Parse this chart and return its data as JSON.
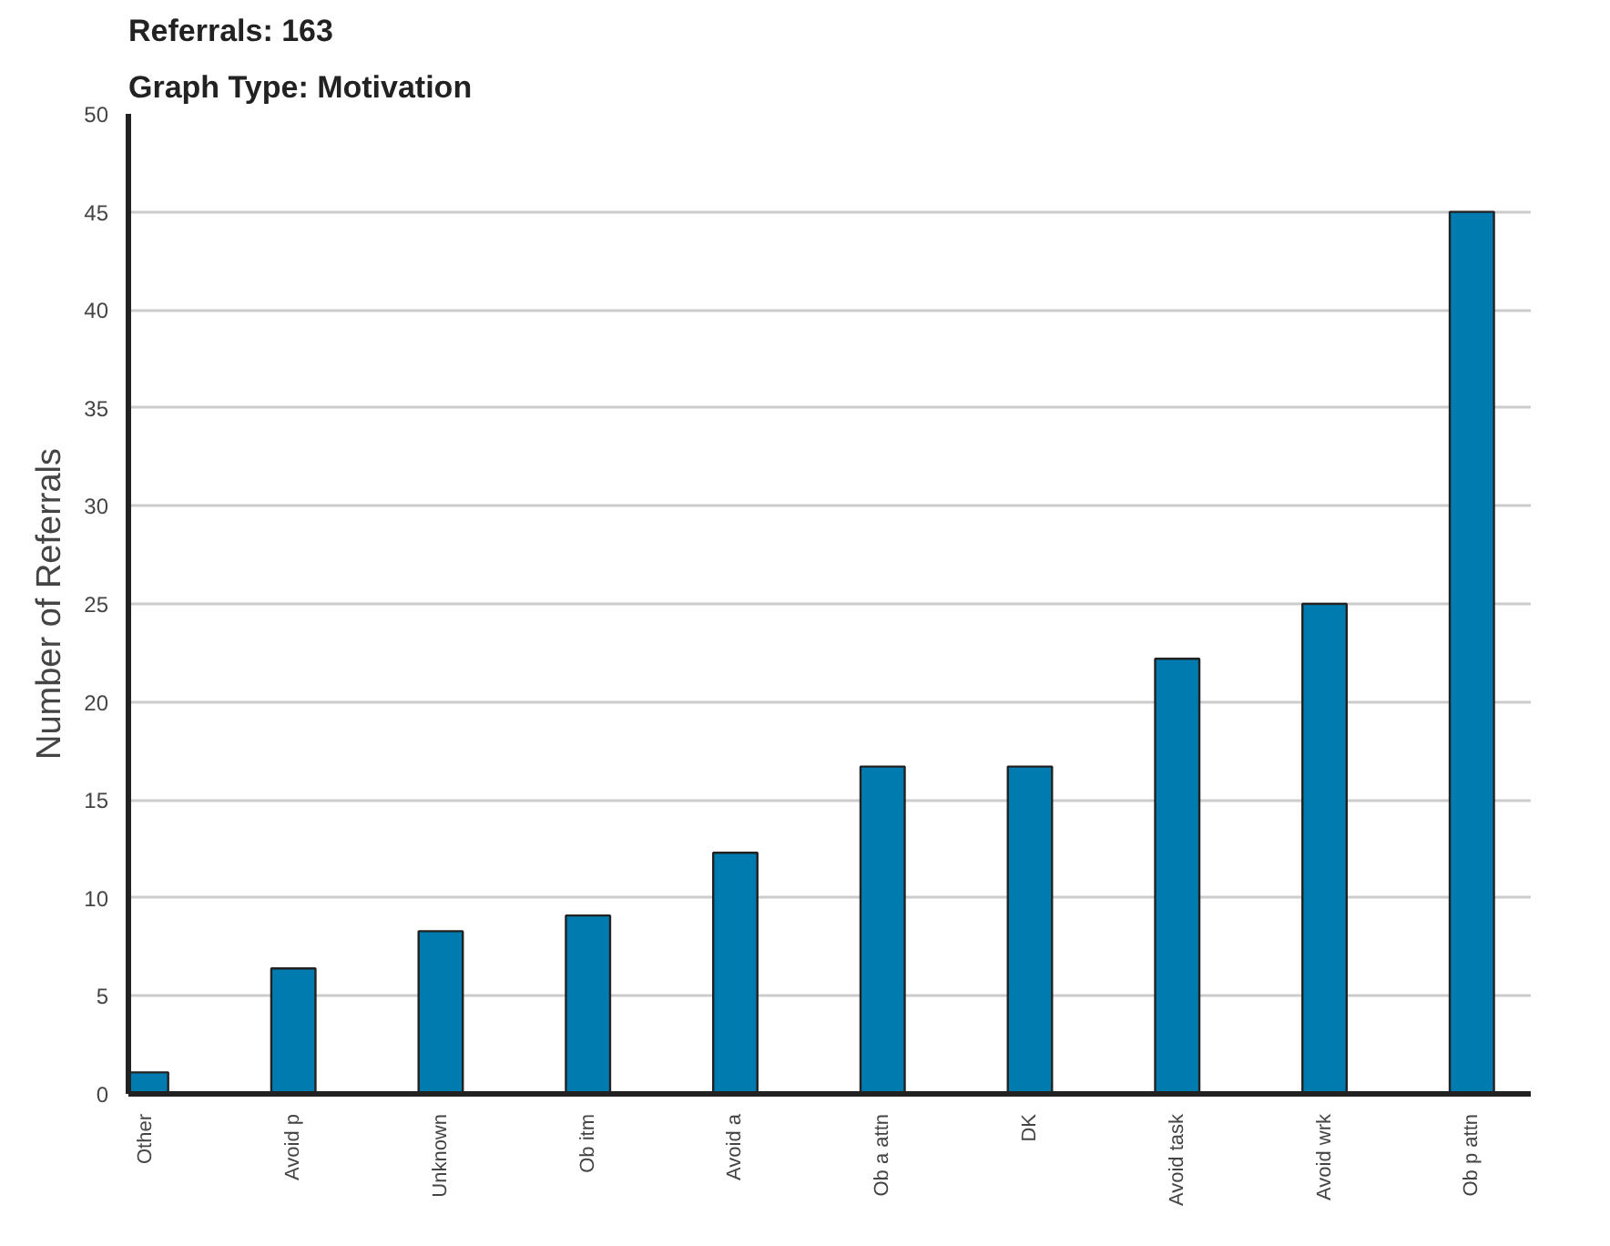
{
  "chart_data": {
    "type": "bar",
    "title": "Referrals: 163",
    "subtitle": "Graph Type: Motivation",
    "ylabel": "Number of Referrals",
    "categories": [
      "Other",
      "Avoid p",
      "Unknown",
      "Ob itm",
      "Avoid a",
      "Ob a attn",
      "DK",
      "Avoid task",
      "Avoid wrk",
      "Ob p attn"
    ],
    "values": [
      1.1,
      6.4,
      8.3,
      9.1,
      12.3,
      16.7,
      16.7,
      22.2,
      25.0,
      45.0
    ],
    "color": "#007bb0",
    "ylim": [
      0,
      50
    ],
    "yticks": [
      0,
      5,
      10,
      15,
      20,
      25,
      30,
      35,
      40,
      45,
      50
    ],
    "grid": "y"
  }
}
